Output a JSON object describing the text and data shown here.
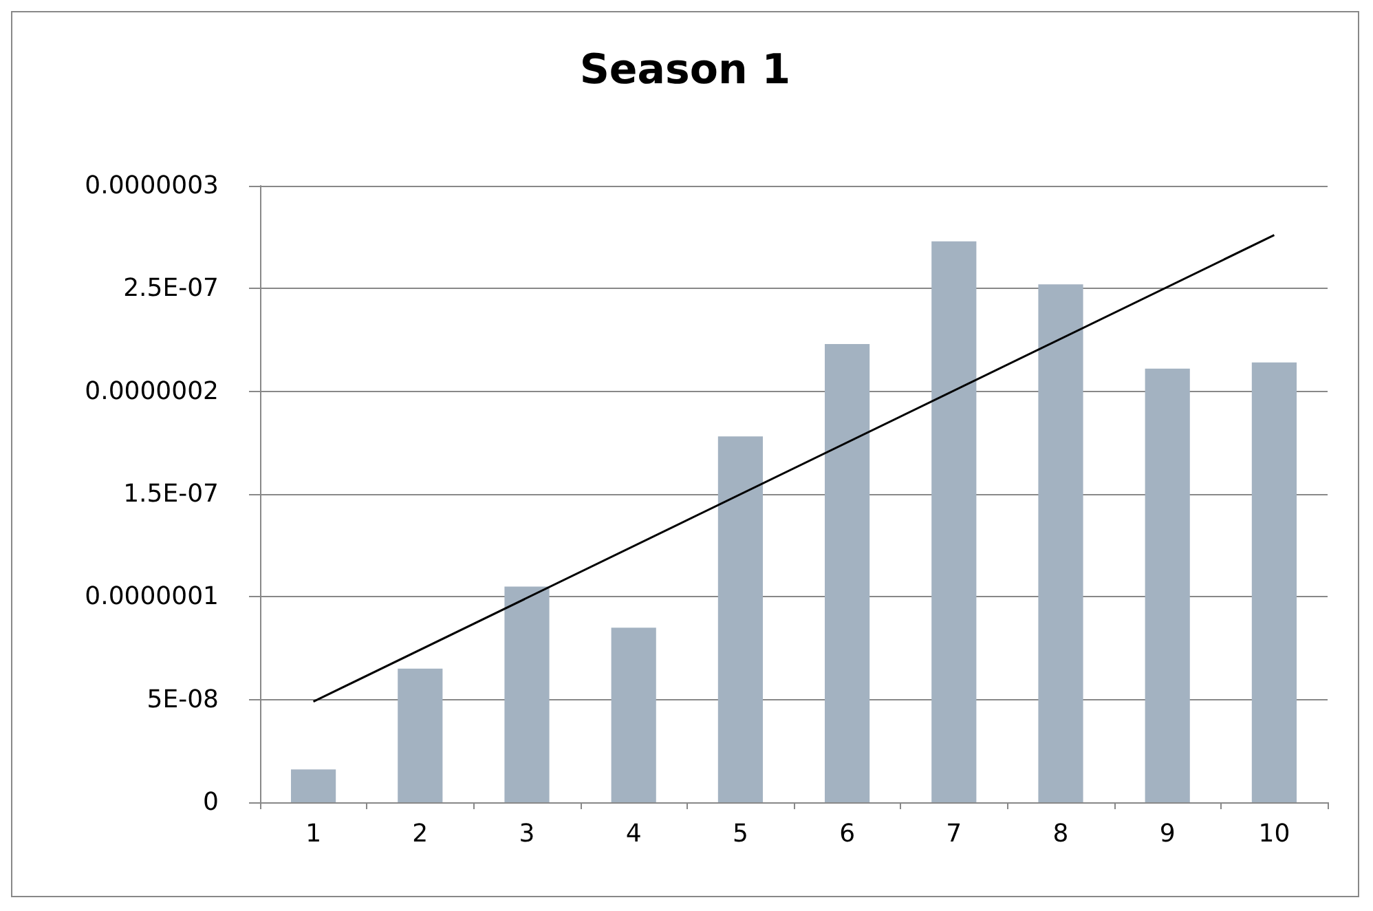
{
  "chart_data": {
    "type": "bar",
    "title": "Season 1",
    "categories": [
      "1",
      "2",
      "3",
      "4",
      "5",
      "6",
      "7",
      "8",
      "9",
      "10"
    ],
    "series": [
      {
        "color": "#a3b2c1",
        "values": [
          1.6e-08,
          6.5e-08,
          1.05e-07,
          8.5e-08,
          1.78e-07,
          2.23e-07,
          2.73e-07,
          2.52e-07,
          2.11e-07,
          2.14e-07
        ]
      },
      {
        "type": "line",
        "color": "#000000",
        "x": [
          "1",
          "10"
        ],
        "values": [
          4.9e-08,
          2.76e-07
        ]
      }
    ],
    "ylim": [
      0,
      3e-07
    ],
    "yticks": [
      {
        "value": 0,
        "label": "0"
      },
      {
        "value": 5e-08,
        "label": "5E-08"
      },
      {
        "value": 1e-07,
        "label": "0.0000001"
      },
      {
        "value": 1.5e-07,
        "label": "1.5E-07"
      },
      {
        "value": 2e-07,
        "label": "0.0000002"
      },
      {
        "value": 2.5e-07,
        "label": "2.5E-07"
      },
      {
        "value": 3e-07,
        "label": "0.0000003"
      }
    ],
    "grid": "y",
    "marker": "none"
  }
}
